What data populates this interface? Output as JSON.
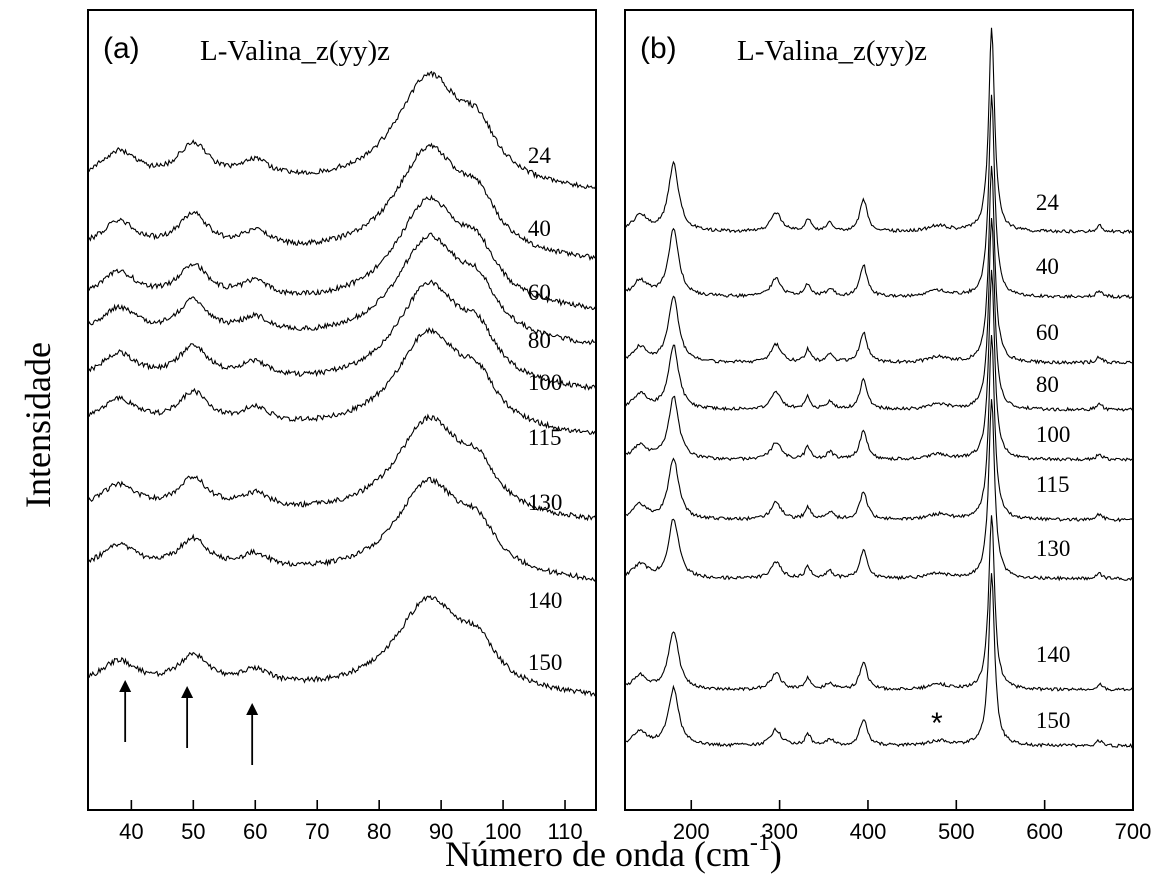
{
  "ylabel": "Intensidade",
  "xlabel_main": "Número de onda (cm",
  "xlabel_sup": "-1",
  "xlabel_close": ")",
  "chart_data": [
    {
      "type": "line",
      "panel": "(a)",
      "title": "L-Valina_z(yy)z",
      "xlim": [
        33,
        115
      ],
      "xticks": [
        40,
        50,
        60,
        70,
        80,
        90,
        100,
        110
      ],
      "series": [
        {
          "name": "24",
          "label_x": 104
        },
        {
          "name": "40",
          "label_x": 104
        },
        {
          "name": "60",
          "label_x": 104
        },
        {
          "name": "80",
          "label_x": 104
        },
        {
          "name": "100",
          "label_x": 104
        },
        {
          "name": "115",
          "label_x": 104
        },
        {
          "name": "130",
          "label_x": 104
        },
        {
          "name": "140",
          "label_x": 104
        },
        {
          "name": "150",
          "label_x": 104
        }
      ],
      "peaks": [
        {
          "x": 38,
          "h": 0.25,
          "w": 3.5
        },
        {
          "x": 50,
          "h": 0.32,
          "w": 3.0
        },
        {
          "x": 60,
          "h": 0.16,
          "w": 3.0
        },
        {
          "x": 88,
          "h": 1.0,
          "w": 6.5
        },
        {
          "x": 96,
          "h": 0.35,
          "w": 3.5
        }
      ],
      "arrows": [
        39,
        49,
        59.5
      ]
    },
    {
      "type": "line",
      "panel": "(b)",
      "title": "L-Valina_z(yy)z",
      "xlim": [
        125,
        700
      ],
      "xticks": [
        200,
        300,
        400,
        500,
        600,
        700
      ],
      "series": [
        {
          "name": "24",
          "label_x": 590
        },
        {
          "name": "40",
          "label_x": 590
        },
        {
          "name": "60",
          "label_x": 590
        },
        {
          "name": "80",
          "label_x": 590
        },
        {
          "name": "100",
          "label_x": 590
        },
        {
          "name": "115",
          "label_x": 590
        },
        {
          "name": "130",
          "label_x": 590
        },
        {
          "name": "140",
          "label_x": 590
        },
        {
          "name": "150",
          "label_x": 590
        }
      ],
      "peaks": [
        {
          "x": 142,
          "h": 0.16,
          "w": 10
        },
        {
          "x": 180,
          "h": 0.68,
          "w": 7
        },
        {
          "x": 296,
          "h": 0.19,
          "w": 7
        },
        {
          "x": 332,
          "h": 0.13,
          "w": 4
        },
        {
          "x": 357,
          "h": 0.08,
          "w": 5
        },
        {
          "x": 395,
          "h": 0.32,
          "w": 5
        },
        {
          "x": 480,
          "h": 0.06,
          "w": 14
        },
        {
          "x": 540,
          "h": 2.05,
          "w": 4
        },
        {
          "x": 662,
          "h": 0.06,
          "w": 4
        }
      ],
      "annotation": {
        "text": "*",
        "x": 478
      }
    }
  ]
}
